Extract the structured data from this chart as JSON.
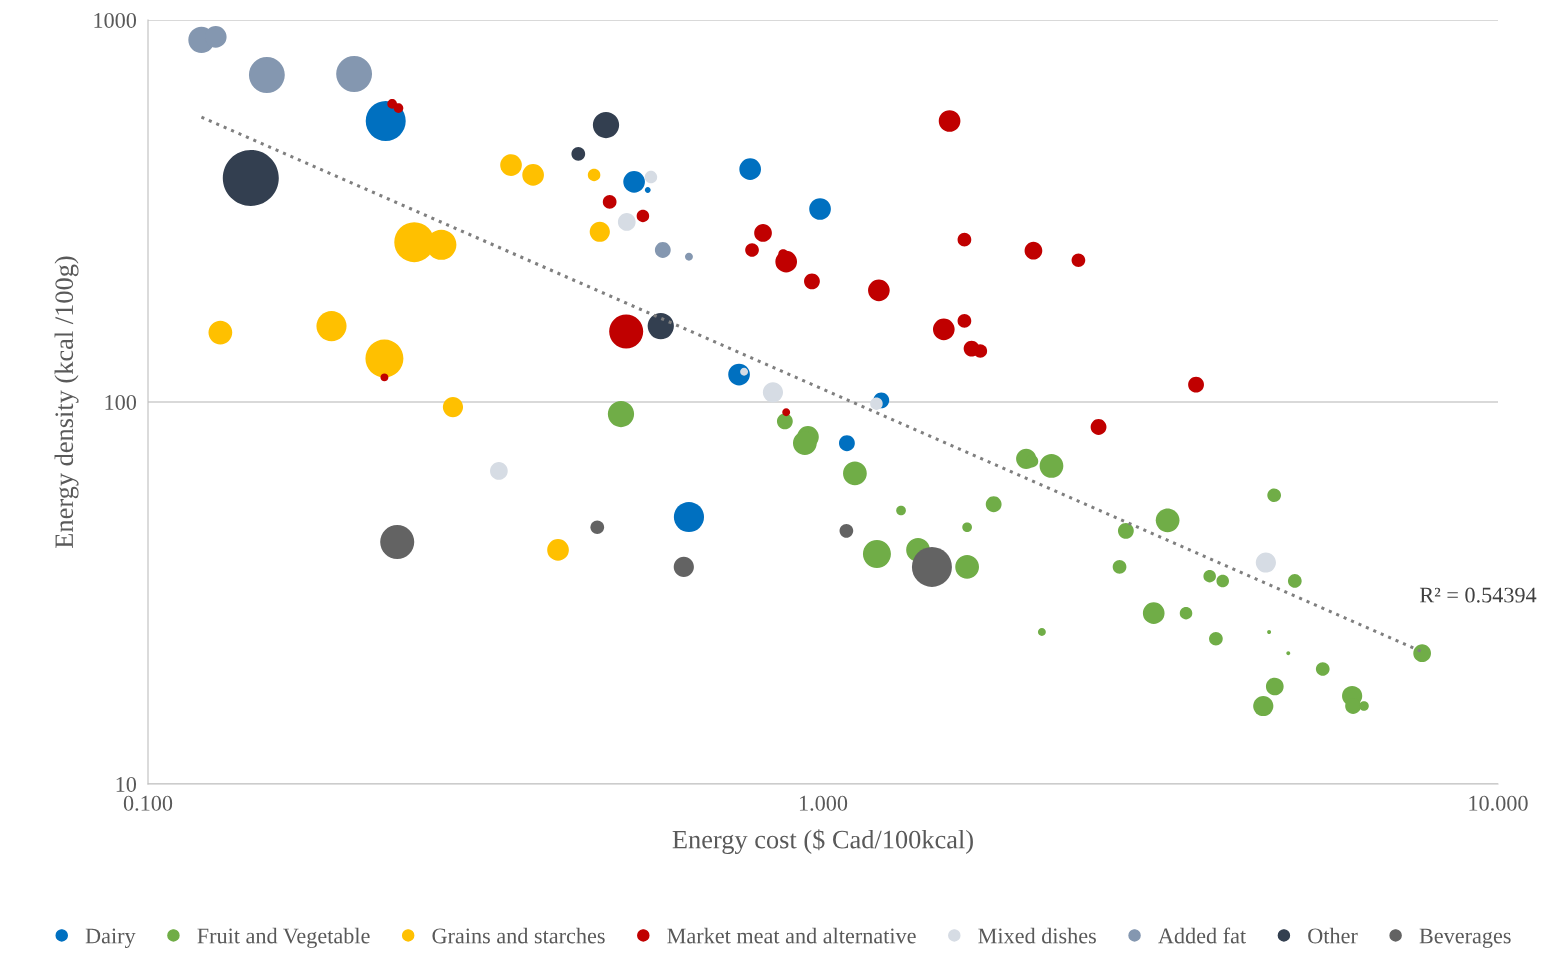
{
  "chart_data": {
    "type": "bubble",
    "xlabel": "Energy cost ($ Cad/100kcal)",
    "ylabel": "Energy density (kcal /100g)",
    "log": "xy",
    "xlim": [
      0.1,
      10
    ],
    "ylim": [
      10,
      1000
    ],
    "xticks": [
      {
        "value": 0.1,
        "label": "0.100"
      },
      {
        "value": 1,
        "label": "1.000"
      },
      {
        "value": 10,
        "label": "10.000"
      }
    ],
    "yticks": [
      10,
      100,
      1000
    ],
    "grid": "y",
    "legend": "bottom",
    "marker": "circle",
    "annotations": [
      "R² = 0.54394"
    ],
    "series": [
      {
        "name": "Dairy",
        "color": "#0070c0",
        "x": [
          0.225,
          0.525,
          0.55,
          0.78,
          0.99,
          0.751,
          1.22,
          1.085,
          0.633
        ],
        "values": [
          544,
          377,
          359,
          407,
          320,
          118,
          101,
          78,
          50
        ],
        "sizes": [
          0.51,
          0.15,
          0.011,
          0.15,
          0.15,
          0.15,
          0.08,
          0.08,
          0.29
        ]
      },
      {
        "name": "Fruit and Vegetable",
        "color": "#70ad47",
        "x": [
          0.502,
          0.878,
          0.95,
          0.94,
          1.115,
          1.202,
          1.305,
          1.383,
          1.635,
          1.635,
          1.79,
          2.0,
          2.04,
          2.18,
          2.11,
          2.81,
          2.75,
          3.09,
          3.24,
          3.45,
          3.74,
          3.82,
          3.91,
          4.66,
          4.58,
          4.89,
          4.67,
          4.49,
          5.0,
          5.5,
          6.08,
          6.1,
          6.33,
          7.72
        ],
        "values": [
          93,
          89,
          81,
          78,
          65,
          40,
          52,
          41,
          47,
          37,
          54,
          71,
          70,
          68,
          25,
          46,
          37,
          28,
          49,
          28,
          35,
          24,
          34,
          57,
          25,
          22,
          18,
          16,
          34,
          20,
          17,
          16,
          16,
          22
        ],
        "sizes": [
          0.22,
          0.08,
          0.15,
          0.18,
          0.18,
          0.25,
          0.03,
          0.18,
          0.03,
          0.18,
          0.08,
          0.13,
          0.05,
          0.18,
          0.02,
          0.08,
          0.06,
          0.15,
          0.18,
          0.05,
          0.05,
          0.06,
          0.05,
          0.06,
          0.005,
          0.005,
          0.1,
          0.13,
          0.06,
          0.06,
          0.13,
          0.08,
          0.03,
          0.1
        ]
      },
      {
        "name": "Grains and starches",
        "color": "#ffc000",
        "x": [
          0.345,
          0.372,
          0.458,
          0.467,
          0.248,
          0.272,
          0.128,
          0.187,
          0.224,
          0.283,
          0.405
        ],
        "values": [
          417,
          393,
          393,
          279,
          262,
          258,
          152,
          158,
          130,
          97,
          41
        ],
        "sizes": [
          0.15,
          0.15,
          0.05,
          0.13,
          0.51,
          0.29,
          0.18,
          0.29,
          0.46,
          0.13,
          0.15
        ]
      },
      {
        "name": "Market meat and alternative",
        "color": "#c00000",
        "x": [
          0.23,
          0.235,
          1.54,
          0.483,
          0.541,
          0.815,
          0.785,
          0.873,
          0.882,
          0.963,
          1.62,
          2.05,
          2.39,
          1.21,
          1.51,
          1.62,
          1.66,
          1.71,
          0.511,
          0.224,
          0.882,
          2.56,
          3.57
        ],
        "values": [
          603,
          588,
          544,
          334,
          307,
          277,
          250,
          244,
          233,
          207,
          266,
          249,
          235,
          196,
          155,
          163,
          138,
          136,
          153,
          116,
          94,
          86,
          111
        ],
        "sizes": [
          0.03,
          0.03,
          0.15,
          0.06,
          0.05,
          0.1,
          0.06,
          0.03,
          0.15,
          0.08,
          0.06,
          0.1,
          0.06,
          0.15,
          0.15,
          0.06,
          0.08,
          0.06,
          0.37,
          0.02,
          0.02,
          0.08,
          0.08
        ]
      },
      {
        "name": "Mixed dishes",
        "color": "#d6dce4",
        "x": [
          0.556,
          0.512,
          0.764,
          0.843,
          1.2,
          0.331,
          4.53
        ],
        "values": [
          388,
          296,
          120,
          106,
          99,
          66,
          38
        ],
        "sizes": [
          0.05,
          0.1,
          0.02,
          0.13,
          0.05,
          0.1,
          0.13
        ]
      },
      {
        "name": "Added fat",
        "color": "#8497b0",
        "x": [
          0.12,
          0.126,
          0.15,
          0.202,
          0.579,
          0.633
        ],
        "values": [
          887,
          903,
          718,
          722,
          250,
          240
        ],
        "sizes": [
          0.22,
          0.15,
          0.41,
          0.41,
          0.08,
          0.02
        ]
      },
      {
        "name": "Other",
        "color": "#333f50",
        "x": [
          0.477,
          0.434,
          0.142,
          0.575
        ],
        "values": [
          531,
          446,
          386,
          158
        ],
        "sizes": [
          0.22,
          0.06,
          1,
          0.22
        ]
      },
      {
        "name": "Beverages",
        "color": "#636363",
        "x": [
          0.234,
          0.463,
          0.622,
          1.083,
          1.45
        ],
        "values": [
          43,
          47,
          37,
          46,
          37
        ],
        "sizes": [
          0.37,
          0.06,
          0.13,
          0.06,
          0.51
        ]
      },
      {
        "type": "line",
        "color": "#7f7f7f",
        "line_style": "dotted",
        "marker": "none",
        "x": [
          0.12,
          7.72
        ],
        "values": [
          557,
          22.2
        ]
      }
    ]
  }
}
